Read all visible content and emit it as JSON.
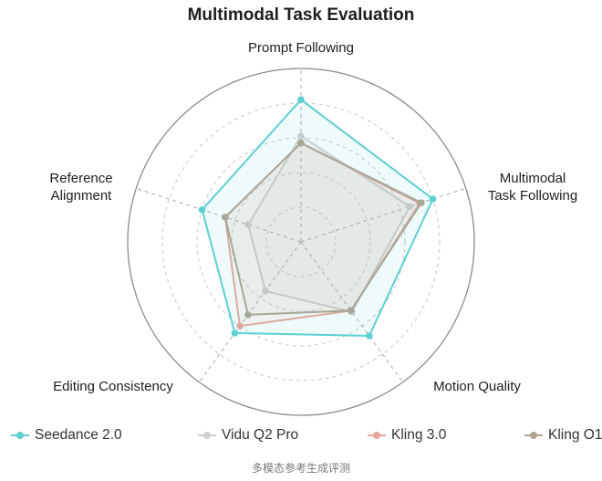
{
  "chart_data": {
    "type": "radar",
    "title": "Multimodal Task Evaluation",
    "axes": [
      {
        "label": [
          "Prompt Following"
        ]
      },
      {
        "label": [
          "Multimodal",
          "Task Following"
        ]
      },
      {
        "label": [
          "Motion Quality"
        ]
      },
      {
        "label": [
          "Editing Consistency"
        ]
      },
      {
        "label": [
          "Reference",
          "Alignment"
        ]
      }
    ],
    "range": [
      0,
      100
    ],
    "grid_levels": 5,
    "grid": true,
    "legend_position": "bottom",
    "series": [
      {
        "name": "Seedance 2.0",
        "color": "#5fcfd2",
        "values": [
          82,
          80,
          67,
          65,
          60
        ]
      },
      {
        "name": "Vidu Q2 Pro",
        "color": "#d0d0d0",
        "values": [
          61,
          66,
          50,
          35,
          32
        ]
      },
      {
        "name": "Kling 3.0",
        "color": "#e8a79c",
        "values": [
          57,
          72,
          49,
          60,
          46
        ]
      },
      {
        "name": "Kling O1",
        "color": "#b0a391",
        "values": [
          57,
          73,
          49,
          52,
          46
        ]
      }
    ]
  },
  "caption": "多模态参考生成评测"
}
